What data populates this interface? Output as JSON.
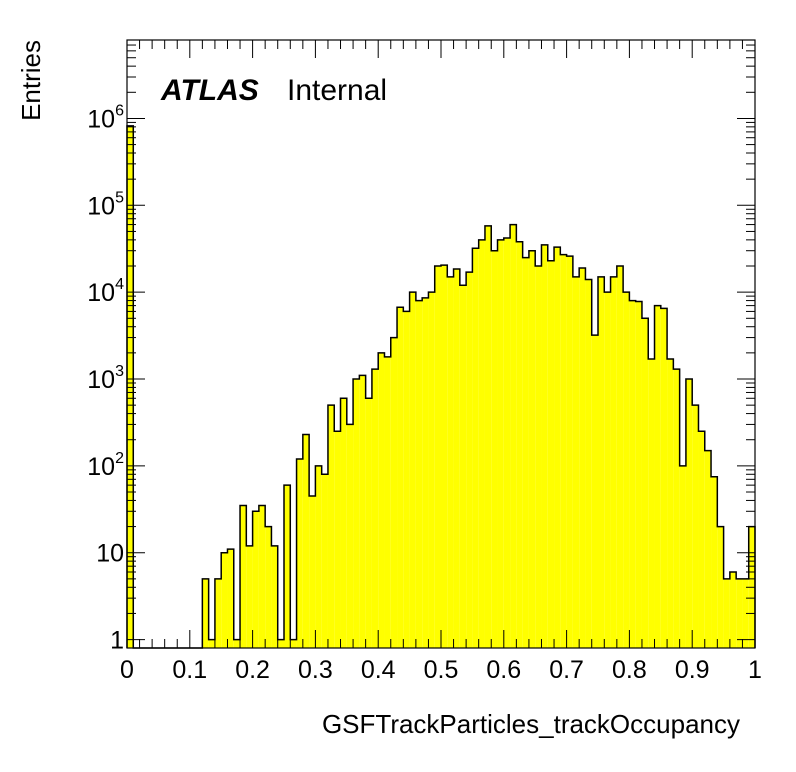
{
  "chart_data": {
    "type": "histogram",
    "xlabel": "GSFTrackParticles_trackOccupancy",
    "ylabel": "Entries",
    "xlim": [
      0,
      1
    ],
    "ylim": [
      0.8,
      8000000
    ],
    "y_scale": "log",
    "fill_color": "#ffff00",
    "line_color": "#000000",
    "experiment_label": "ATLAS",
    "status_label": "Internal",
    "x_tick_labels": [
      "0",
      "0.1",
      "0.2",
      "0.3",
      "0.4",
      "0.5",
      "0.6",
      "0.7",
      "0.8",
      "0.9",
      "1"
    ],
    "y_tick_labels": [
      {
        "value": 1,
        "base": "1",
        "exp": ""
      },
      {
        "value": 10,
        "base": "10",
        "exp": ""
      },
      {
        "value": 100,
        "base": "10",
        "exp": "2"
      },
      {
        "value": 1000,
        "base": "10",
        "exp": "3"
      },
      {
        "value": 10000,
        "base": "10",
        "exp": "4"
      },
      {
        "value": 100000,
        "base": "10",
        "exp": "5"
      },
      {
        "value": 1000000,
        "base": "10",
        "exp": "6"
      }
    ],
    "bin_width": 0.01,
    "bin_lows": [
      0.0,
      0.01,
      0.02,
      0.03,
      0.04,
      0.05,
      0.06,
      0.07,
      0.08,
      0.09,
      0.1,
      0.11,
      0.12,
      0.13,
      0.14,
      0.15,
      0.16,
      0.17,
      0.18,
      0.19,
      0.2,
      0.21,
      0.22,
      0.23,
      0.24,
      0.25,
      0.26,
      0.27,
      0.28,
      0.29,
      0.3,
      0.31,
      0.32,
      0.33,
      0.34,
      0.35,
      0.36,
      0.37,
      0.38,
      0.39,
      0.4,
      0.41,
      0.42,
      0.43,
      0.44,
      0.45,
      0.46,
      0.47,
      0.48,
      0.49,
      0.5,
      0.51,
      0.52,
      0.53,
      0.54,
      0.55,
      0.56,
      0.57,
      0.58,
      0.59,
      0.6,
      0.61,
      0.62,
      0.63,
      0.64,
      0.65,
      0.66,
      0.67,
      0.68,
      0.69,
      0.7,
      0.71,
      0.72,
      0.73,
      0.74,
      0.75,
      0.76,
      0.77,
      0.78,
      0.79,
      0.8,
      0.81,
      0.82,
      0.83,
      0.84,
      0.85,
      0.86,
      0.87,
      0.88,
      0.89,
      0.9,
      0.91,
      0.92,
      0.93,
      0.94,
      0.95,
      0.96,
      0.97,
      0.98,
      0.99
    ],
    "counts": [
      820000,
      0,
      0,
      0,
      0,
      0,
      0,
      0,
      0,
      0,
      0,
      0,
      5,
      1,
      5,
      10,
      11,
      1,
      35,
      12,
      30,
      35,
      20,
      12,
      1,
      60,
      1,
      120,
      230,
      45,
      100,
      80,
      500,
      250,
      600,
      300,
      1000,
      1100,
      600,
      1300,
      2000,
      1800,
      3000,
      6700,
      6000,
      10000,
      8000,
      8600,
      10000,
      20000,
      20500,
      15000,
      18500,
      12000,
      17000,
      32000,
      40000,
      58000,
      30000,
      40000,
      42000,
      60000,
      38000,
      25000,
      30000,
      20000,
      35000,
      23000,
      33000,
      27000,
      26000,
      15000,
      19000,
      14000,
      3200,
      15000,
      10000,
      15000,
      20000,
      10000,
      8000,
      7800,
      5000,
      1700,
      7000,
      6500,
      1700,
      1300,
      100,
      1000,
      500,
      250,
      150,
      75,
      20,
      5,
      6,
      5,
      5,
      20
    ]
  }
}
